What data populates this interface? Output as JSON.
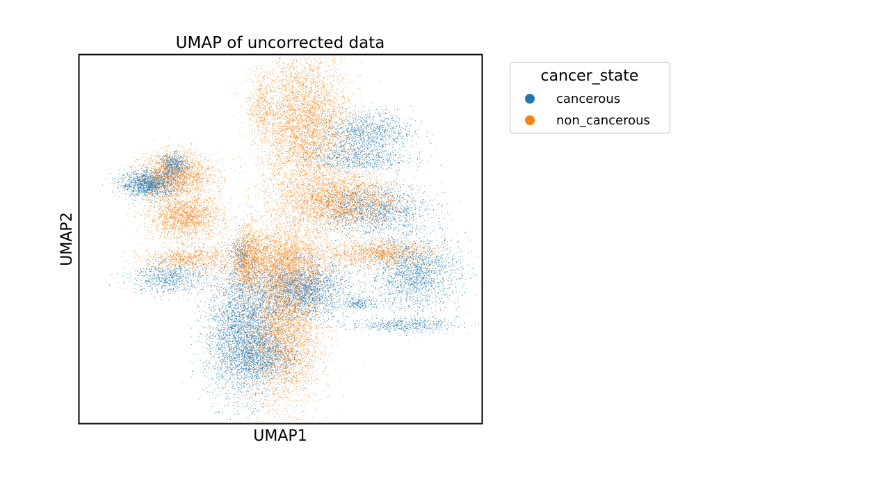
{
  "chart_data": {
    "type": "scatter",
    "title": "UMAP of uncorrected data",
    "xlabel": "UMAP1",
    "ylabel": "UMAP2",
    "xticks": [],
    "yticks": [],
    "grid": false,
    "legend": {
      "title": "cancer_state",
      "placement": "outside-top-right",
      "entries": [
        "cancerous",
        "non_cancerous"
      ]
    },
    "series": [
      {
        "name": "cancerous",
        "color": "#1f77b4",
        "clusters": [
          {
            "center": [
              -9.2,
              5.6
            ],
            "spread": [
              1.0,
              0.45
            ],
            "n": 1300
          },
          {
            "center": [
              -7.5,
              6.9
            ],
            "spread": [
              0.5,
              0.4
            ],
            "n": 450
          },
          {
            "center": [
              -7.9,
              -0.9
            ],
            "spread": [
              1.3,
              0.55
            ],
            "n": 700
          },
          {
            "center": [
              -2.6,
              -4.6
            ],
            "spread": [
              1.3,
              2.4
            ],
            "n": 3300
          },
          {
            "center": [
              1.5,
              -1.8
            ],
            "spread": [
              1.6,
              1.0
            ],
            "n": 2200
          },
          {
            "center": [
              6.0,
              9.2
            ],
            "spread": [
              1.6,
              0.75
            ],
            "n": 1000
          },
          {
            "center": [
              5.2,
              7.4
            ],
            "spread": [
              1.8,
              0.5
            ],
            "n": 700
          },
          {
            "center": [
              6.5,
              3.8
            ],
            "spread": [
              2.0,
              0.9
            ],
            "n": 1400
          },
          {
            "center": [
              9.3,
              -0.6
            ],
            "spread": [
              1.6,
              1.3
            ],
            "n": 1800
          },
          {
            "center": [
              8.6,
              -4.2
            ],
            "spread": [
              1.9,
              0.25
            ],
            "n": 500
          },
          {
            "center": [
              5.5,
              -2.7
            ],
            "spread": [
              0.6,
              0.2
            ],
            "n": 180
          },
          {
            "center": [
              -2.8,
              0.6
            ],
            "spread": [
              0.3,
              0.6
            ],
            "n": 200
          },
          {
            "center": [
              -1.5,
              -6.3
            ],
            "spread": [
              1.4,
              0.9
            ],
            "n": 900
          }
        ]
      },
      {
        "name": "non_cancerous",
        "color": "#ff7f0e",
        "clusters": [
          {
            "center": [
              -7.3,
              6.2
            ],
            "spread": [
              1.3,
              0.8
            ],
            "n": 1600
          },
          {
            "center": [
              -6.7,
              3.3
            ],
            "spread": [
              1.3,
              0.75
            ],
            "n": 1500
          },
          {
            "center": [
              -6.6,
              0.4
            ],
            "spread": [
              1.5,
              0.45
            ],
            "n": 700
          },
          {
            "center": [
              -2.3,
              0.4
            ],
            "spread": [
              0.4,
              1.2
            ],
            "n": 500
          },
          {
            "center": [
              -1.4,
              10.9
            ],
            "spread": [
              0.4,
              1.2
            ],
            "n": 300
          },
          {
            "center": [
              1.6,
              9.7
            ],
            "spread": [
              1.6,
              2.5
            ],
            "n": 3800
          },
          {
            "center": [
              3.9,
              4.4
            ],
            "spread": [
              2.1,
              1.0
            ],
            "n": 2500
          },
          {
            "center": [
              -0.3,
              0.3
            ],
            "spread": [
              2.1,
              1.2
            ],
            "n": 2800
          },
          {
            "center": [
              0.2,
              -4.5
            ],
            "spread": [
              1.3,
              2.7
            ],
            "n": 3400
          },
          {
            "center": [
              6.9,
              0.8
            ],
            "spread": [
              1.8,
              0.45
            ],
            "n": 1000
          }
        ]
      }
    ],
    "xlim": [
      -14,
      14
    ],
    "ylim": [
      -11,
      14.5
    ]
  }
}
